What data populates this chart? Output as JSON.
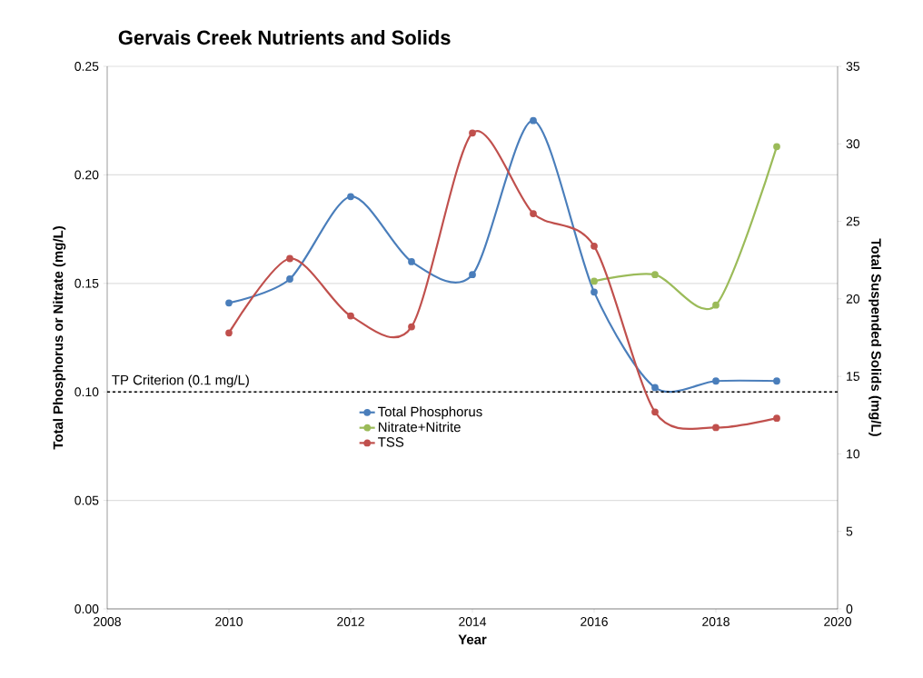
{
  "chart_data": {
    "type": "line",
    "title": "Gervais Creek Nutrients and Solids",
    "xlabel": "Year",
    "ylabel": "Total Phosphorus or Nitrate (mg/L)",
    "y2label": "Total Suspended Solids (mg/L)",
    "xlim": [
      2008,
      2020
    ],
    "xticks": [
      2008,
      2010,
      2012,
      2014,
      2016,
      2018,
      2020
    ],
    "ylim": [
      0,
      0.25
    ],
    "yticks": [
      {
        "value": 0,
        "label": "0.00"
      },
      {
        "value": 0.05,
        "label": "0.05"
      },
      {
        "value": 0.1,
        "label": "0.10"
      },
      {
        "value": 0.15,
        "label": "0.15"
      },
      {
        "value": 0.2,
        "label": "0.20"
      },
      {
        "value": 0.25,
        "label": "0.25"
      }
    ],
    "y2lim": [
      0,
      35
    ],
    "y2ticks": [
      0,
      5,
      10,
      15,
      20,
      25,
      30,
      35
    ],
    "grid": "y",
    "legend": "center",
    "marker": "circle",
    "line_style": "solid",
    "series": [
      {
        "name": "Total Phosphorus",
        "color": "#4a7ebb",
        "x": [
          2010,
          2011,
          2012,
          2013,
          2014,
          2015,
          2016,
          2017,
          2018,
          2019
        ],
        "values": [
          0.141,
          0.152,
          0.19,
          0.16,
          0.154,
          0.225,
          0.146,
          0.102,
          0.105,
          0.105
        ]
      },
      {
        "name": "Nitrate+Nitrite",
        "color": "#9bbb59",
        "x": [
          2016,
          2017,
          2018,
          2019
        ],
        "values": [
          0.151,
          0.154,
          0.14,
          0.213
        ]
      },
      {
        "name": "TSS",
        "color": "#c0504d",
        "axis": "y2",
        "x": [
          2010,
          2011,
          2012,
          2013,
          2014,
          2015,
          2016,
          2017,
          2018,
          2019
        ],
        "values": [
          17.8,
          22.6,
          18.9,
          18.2,
          30.7,
          25.5,
          23.4,
          12.7,
          11.7,
          12.3
        ]
      }
    ],
    "ref_lines": [
      {
        "axis": "y",
        "value": 0.1,
        "label": "TP Criterion (0.1 mg/L)",
        "color": "#000000",
        "line_style": "dashed"
      }
    ]
  }
}
